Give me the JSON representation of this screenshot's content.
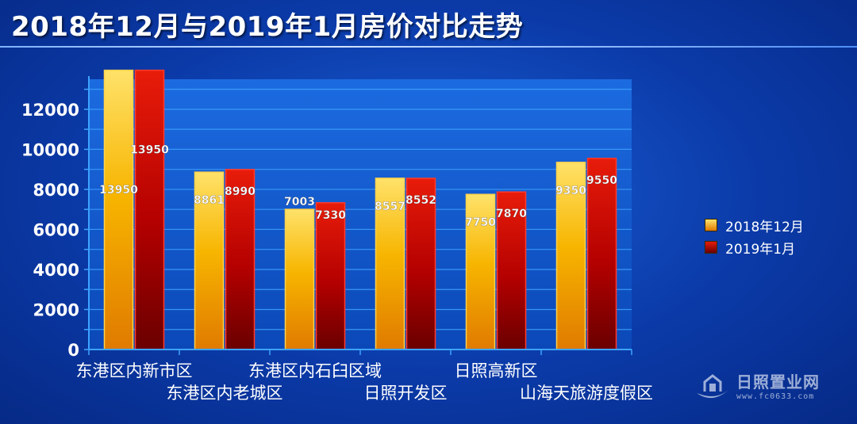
{
  "title": "2018年12月与2019年1月房价对比走势",
  "watermark": {
    "text": "日照置业网",
    "url": "www.fc0633.com"
  },
  "colors": {
    "series1": "#f4b400",
    "series2": "#c40000",
    "axis": "#3da3ff",
    "grid": "#3da3ff",
    "text": "#ffffff"
  },
  "chart_data": {
    "type": "bar",
    "title": "2018年12月与2019年1月房价对比走势",
    "categories": [
      "东港区内新市区",
      "东港区内老城区",
      "东港区内石臼区域",
      "日照开发区",
      "日照高新区",
      "山海天旅游度假区"
    ],
    "series": [
      {
        "name": "2018年12月",
        "values": [
          13950,
          8861,
          7003,
          8557,
          7750,
          9350
        ]
      },
      {
        "name": "2019年1月",
        "values": [
          13950,
          8990,
          7330,
          8552,
          7870,
          9550
        ]
      }
    ],
    "data_labels": [
      [
        "13950",
        "8861",
        "7003",
        "8557",
        "7750",
        "9350"
      ],
      [
        "13950",
        "8990",
        "7330",
        "8552",
        "7870",
        "9550"
      ]
    ],
    "y_ticks": [
      0,
      2000,
      4000,
      6000,
      8000,
      10000,
      12000
    ],
    "ylim": [
      0,
      13500
    ],
    "grid": true,
    "legend_position": "right"
  }
}
